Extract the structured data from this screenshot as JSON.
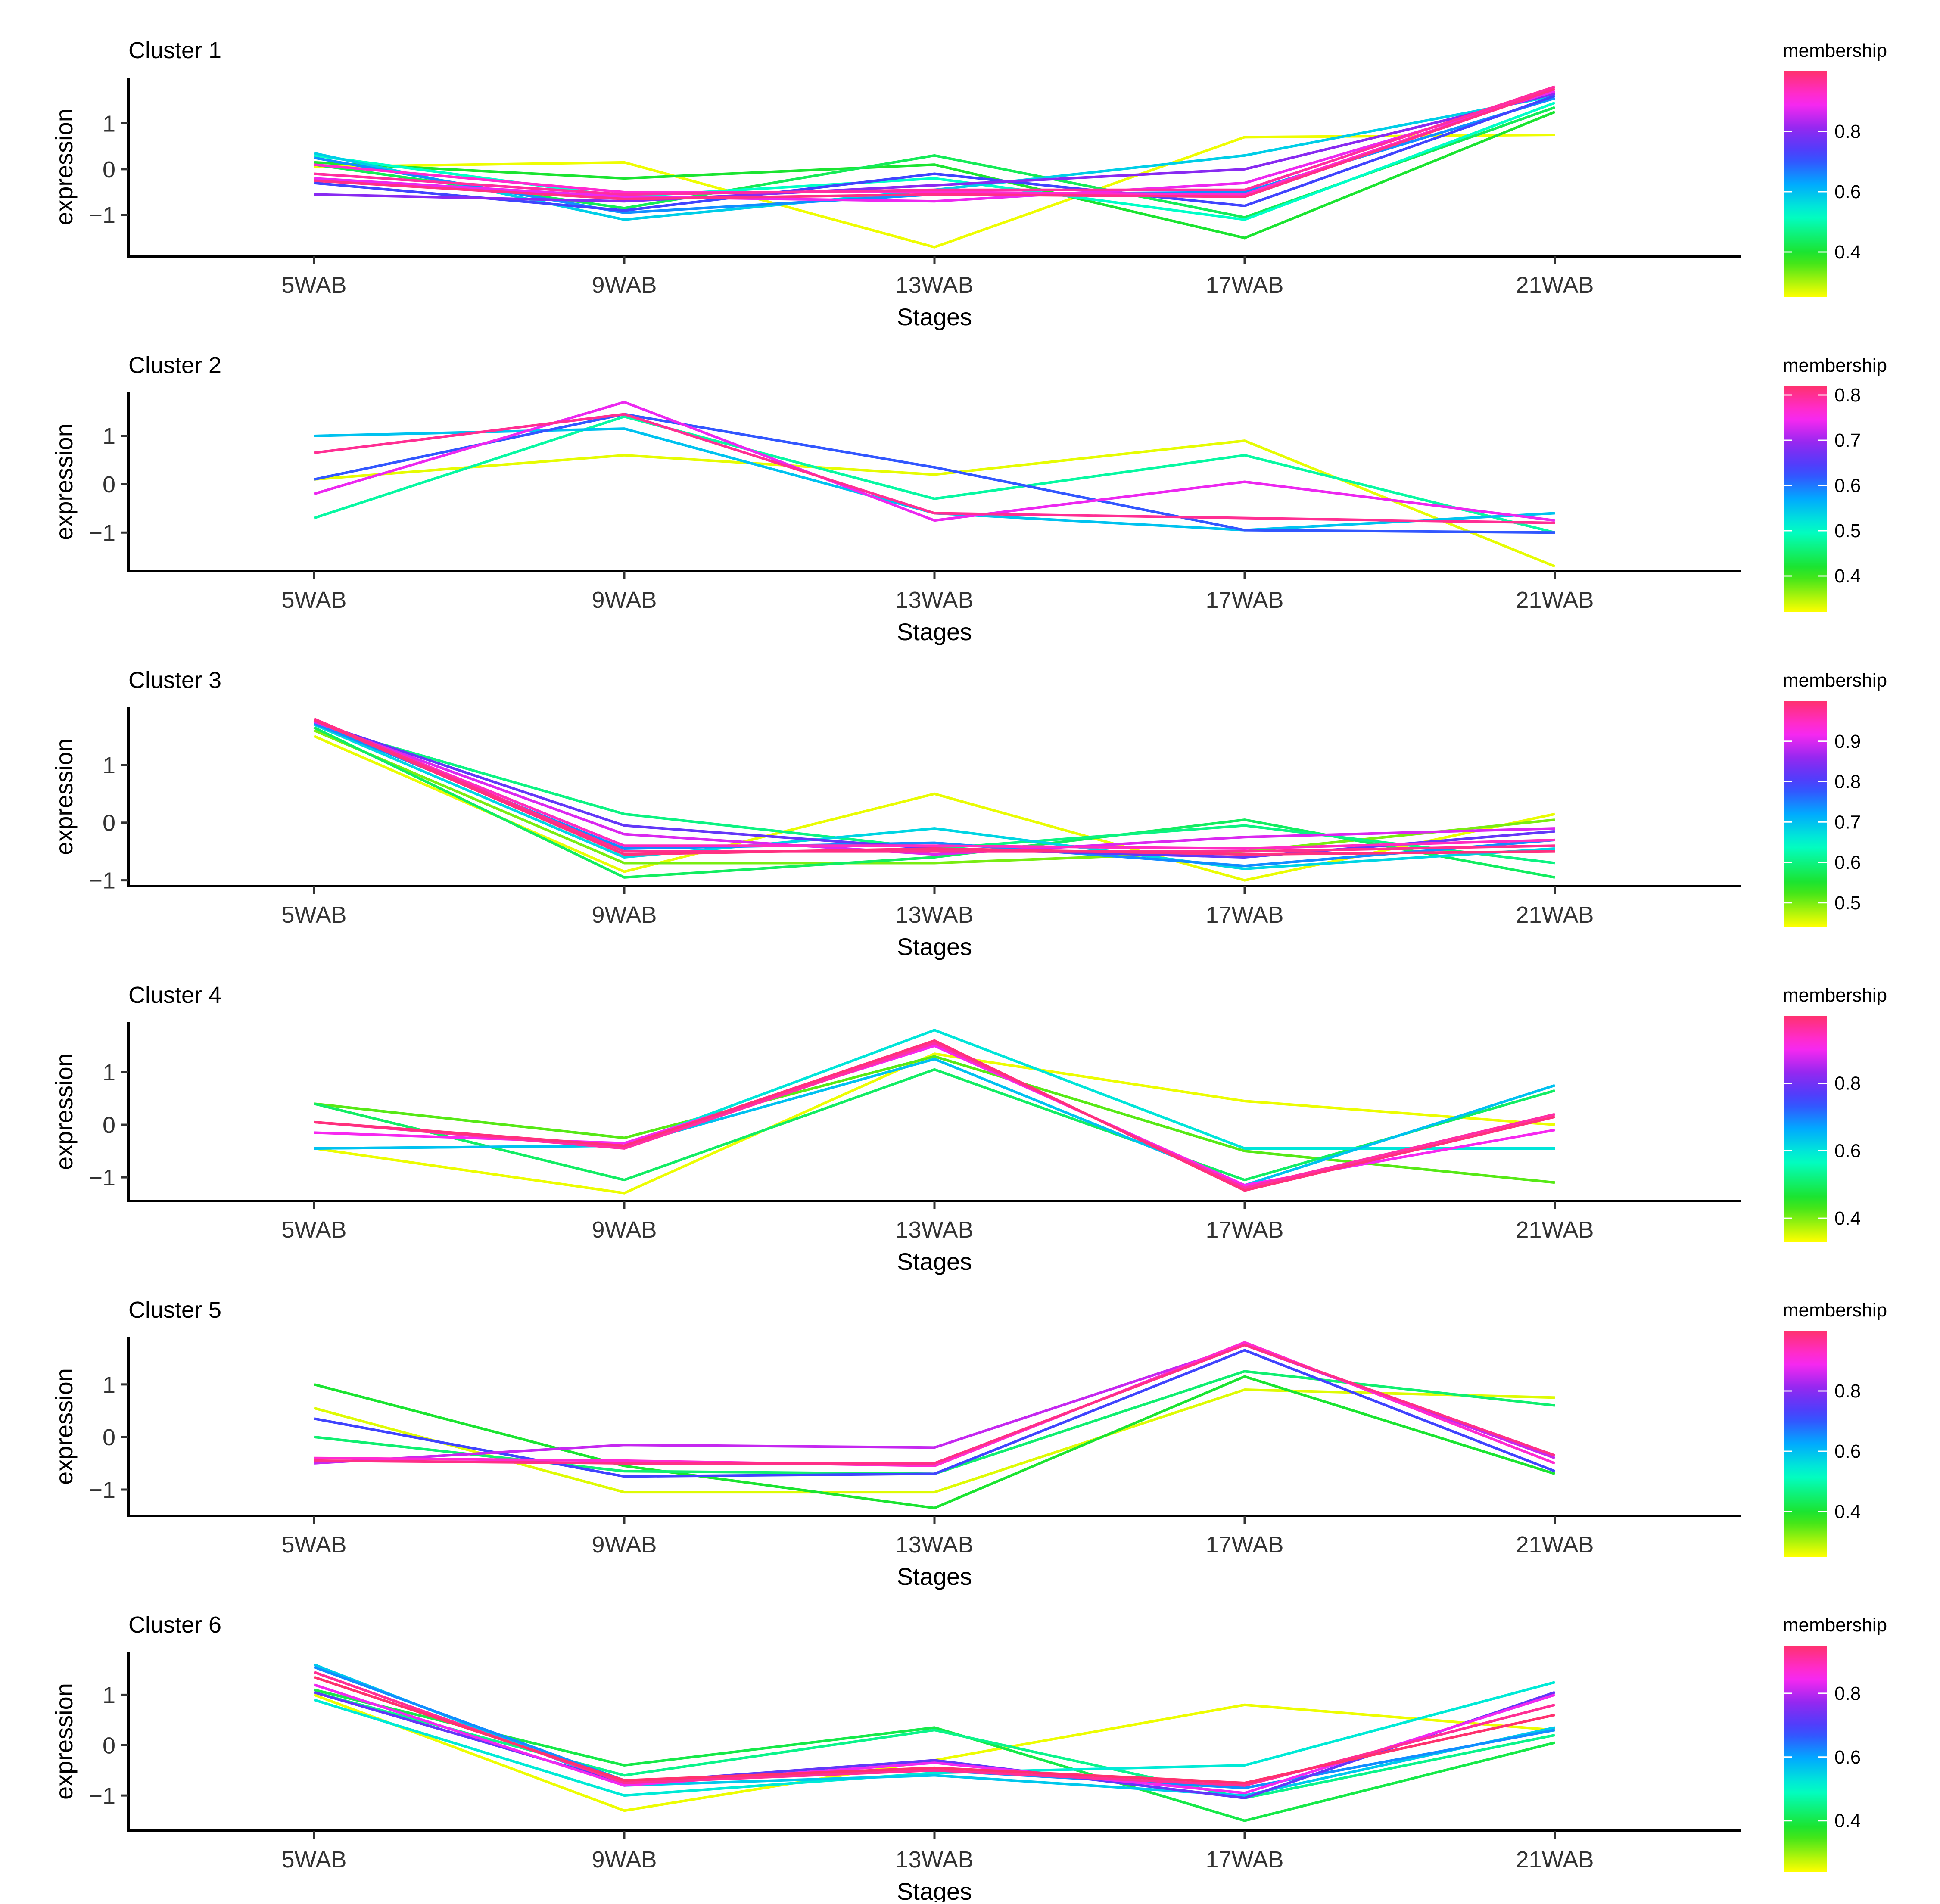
{
  "chart_data": [
    {
      "type": "line",
      "title": "Cluster 1",
      "xlabel": "Stages",
      "ylabel": "expression",
      "categories": [
        "5WAB",
        "9WAB",
        "13WAB",
        "17WAB",
        "21WAB"
      ],
      "yticks": [
        -1,
        0,
        1
      ],
      "ylim": [
        -1.9,
        2.0
      ],
      "legend": {
        "title": "membership",
        "ticks": [
          0.4,
          0.6,
          0.8
        ],
        "range": [
          0.25,
          1.0
        ]
      },
      "series": [
        {
          "membership": 0.26,
          "values": [
            0.05,
            0.15,
            -1.7,
            0.7,
            0.75
          ]
        },
        {
          "membership": 0.4,
          "values": [
            0.15,
            -0.2,
            0.1,
            -1.5,
            1.25
          ]
        },
        {
          "membership": 0.43,
          "values": [
            0.1,
            -0.85,
            0.3,
            -1.05,
            1.35
          ]
        },
        {
          "membership": 0.52,
          "values": [
            0.3,
            -0.6,
            -0.2,
            -1.1,
            1.45
          ]
        },
        {
          "membership": 0.58,
          "values": [
            0.35,
            -1.1,
            -0.45,
            0.3,
            1.6
          ]
        },
        {
          "membership": 0.65,
          "values": [
            0.25,
            -0.95,
            -0.55,
            -0.5,
            1.55
          ]
        },
        {
          "membership": 0.72,
          "values": [
            -0.3,
            -0.9,
            -0.1,
            -0.8,
            1.6
          ]
        },
        {
          "membership": 0.8,
          "values": [
            -0.55,
            -0.7,
            -0.35,
            0.0,
            1.65
          ]
        },
        {
          "membership": 0.88,
          "values": [
            -0.2,
            -0.6,
            -0.7,
            -0.3,
            1.7
          ]
        },
        {
          "membership": 0.92,
          "values": [
            0.1,
            -0.5,
            -0.5,
            -0.55,
            1.75
          ]
        },
        {
          "membership": 0.96,
          "values": [
            -0.1,
            -0.55,
            -0.45,
            -0.45,
            1.8
          ]
        },
        {
          "membership": 0.98,
          "values": [
            -0.25,
            -0.65,
            -0.55,
            -0.6,
            1.75
          ]
        }
      ]
    },
    {
      "type": "line",
      "title": "Cluster 2",
      "xlabel": "Stages",
      "ylabel": "expression",
      "categories": [
        "5WAB",
        "9WAB",
        "13WAB",
        "17WAB",
        "21WAB"
      ],
      "yticks": [
        -1,
        0,
        1
      ],
      "ylim": [
        -1.8,
        1.9
      ],
      "legend": {
        "title": "membership",
        "ticks": [
          0.4,
          0.5,
          0.6,
          0.7,
          0.8
        ],
        "range": [
          0.32,
          0.82
        ]
      },
      "series": [
        {
          "membership": 0.33,
          "values": [
            0.1,
            0.6,
            0.2,
            0.9,
            -1.7
          ]
        },
        {
          "membership": 0.48,
          "values": [
            -0.7,
            1.4,
            -0.3,
            0.6,
            -1.0
          ]
        },
        {
          "membership": 0.55,
          "values": [
            1.0,
            1.15,
            -0.6,
            -0.95,
            -0.6
          ]
        },
        {
          "membership": 0.62,
          "values": [
            0.1,
            1.45,
            0.35,
            -0.95,
            -1.0
          ]
        },
        {
          "membership": 0.74,
          "values": [
            -0.2,
            1.7,
            -0.75,
            0.05,
            -0.75
          ]
        },
        {
          "membership": 0.8,
          "values": [
            0.65,
            1.45,
            -0.6,
            -0.7,
            -0.8
          ]
        }
      ]
    },
    {
      "type": "line",
      "title": "Cluster 3",
      "xlabel": "Stages",
      "ylabel": "expression",
      "categories": [
        "5WAB",
        "9WAB",
        "13WAB",
        "17WAB",
        "21WAB"
      ],
      "yticks": [
        -1,
        0,
        1
      ],
      "ylim": [
        -1.1,
        2.0
      ],
      "legend": {
        "title": "membership",
        "ticks": [
          0.5,
          0.6,
          0.7,
          0.8,
          0.9
        ],
        "range": [
          0.44,
          1.0
        ]
      },
      "series": [
        {
          "membership": 0.45,
          "values": [
            1.5,
            -0.85,
            0.5,
            -1.0,
            0.15
          ]
        },
        {
          "membership": 0.5,
          "values": [
            1.6,
            -0.7,
            -0.7,
            -0.5,
            0.05
          ]
        },
        {
          "membership": 0.58,
          "values": [
            1.65,
            -0.95,
            -0.6,
            0.05,
            -0.95
          ]
        },
        {
          "membership": 0.6,
          "values": [
            1.7,
            0.15,
            -0.45,
            -0.05,
            -0.7
          ]
        },
        {
          "membership": 0.68,
          "values": [
            1.7,
            -0.6,
            -0.1,
            -0.8,
            -0.45
          ]
        },
        {
          "membership": 0.74,
          "values": [
            1.72,
            -0.45,
            -0.35,
            -0.75,
            -0.3
          ]
        },
        {
          "membership": 0.82,
          "values": [
            1.75,
            -0.05,
            -0.45,
            -0.6,
            -0.15
          ]
        },
        {
          "membership": 0.9,
          "values": [
            1.75,
            -0.2,
            -0.55,
            -0.25,
            -0.1
          ]
        },
        {
          "membership": 0.95,
          "values": [
            1.78,
            -0.4,
            -0.4,
            -0.45,
            -0.3
          ]
        },
        {
          "membership": 0.98,
          "values": [
            1.8,
            -0.5,
            -0.5,
            -0.5,
            -0.4
          ]
        },
        {
          "membership": 0.99,
          "values": [
            1.78,
            -0.55,
            -0.45,
            -0.55,
            -0.5
          ]
        }
      ]
    },
    {
      "type": "line",
      "title": "Cluster 4",
      "xlabel": "Stages",
      "ylabel": "expression",
      "categories": [
        "5WAB",
        "9WAB",
        "13WAB",
        "17WAB",
        "21WAB"
      ],
      "yticks": [
        -1,
        0,
        1
      ],
      "ylim": [
        -1.45,
        1.95
      ],
      "legend": {
        "title": "membership",
        "ticks": [
          0.4,
          0.6,
          0.8
        ],
        "range": [
          0.33,
          1.0
        ]
      },
      "series": [
        {
          "membership": 0.34,
          "values": [
            -0.45,
            -1.3,
            1.35,
            0.45,
            0.0
          ]
        },
        {
          "membership": 0.42,
          "values": [
            0.4,
            -0.25,
            1.3,
            -0.5,
            -1.1
          ]
        },
        {
          "membership": 0.5,
          "values": [
            0.4,
            -1.05,
            1.05,
            -1.05,
            0.65
          ]
        },
        {
          "membership": 0.6,
          "values": [
            -0.45,
            -0.4,
            1.8,
            -0.45,
            -0.45
          ]
        },
        {
          "membership": 0.64,
          "values": [
            -0.45,
            -0.4,
            1.25,
            -1.15,
            0.75
          ]
        },
        {
          "membership": 0.9,
          "values": [
            -0.15,
            -0.35,
            1.5,
            -1.15,
            -0.1
          ]
        },
        {
          "membership": 0.96,
          "values": [
            0.05,
            -0.45,
            1.55,
            -1.2,
            0.2
          ]
        },
        {
          "membership": 0.99,
          "values": [
            0.05,
            -0.4,
            1.6,
            -1.25,
            0.15
          ]
        }
      ]
    },
    {
      "type": "line",
      "title": "Cluster 5",
      "xlabel": "Stages",
      "ylabel": "expression",
      "categories": [
        "5WAB",
        "9WAB",
        "13WAB",
        "17WAB",
        "21WAB"
      ],
      "yticks": [
        -1,
        0,
        1
      ],
      "ylim": [
        -1.5,
        1.9
      ],
      "legend": {
        "title": "membership",
        "ticks": [
          0.4,
          0.6,
          0.8
        ],
        "range": [
          0.25,
          1.0
        ]
      },
      "series": [
        {
          "membership": 0.27,
          "values": [
            0.55,
            -1.05,
            -1.05,
            0.9,
            0.75
          ]
        },
        {
          "membership": 0.4,
          "values": [
            1.0,
            -0.55,
            -1.35,
            1.15,
            -0.7
          ]
        },
        {
          "membership": 0.45,
          "values": [
            0.0,
            -0.65,
            -0.7,
            1.25,
            0.6
          ]
        },
        {
          "membership": 0.72,
          "values": [
            0.35,
            -0.75,
            -0.7,
            1.65,
            -0.65
          ]
        },
        {
          "membership": 0.85,
          "values": [
            -0.5,
            -0.15,
            -0.2,
            1.75,
            -0.4
          ]
        },
        {
          "membership": 0.92,
          "values": [
            -0.4,
            -0.45,
            -0.55,
            1.8,
            -0.5
          ]
        },
        {
          "membership": 0.98,
          "values": [
            -0.45,
            -0.5,
            -0.5,
            1.75,
            -0.35
          ]
        }
      ]
    },
    {
      "type": "line",
      "title": "Cluster 6",
      "xlabel": "Stages",
      "ylabel": "expression",
      "categories": [
        "5WAB",
        "9WAB",
        "13WAB",
        "17WAB",
        "21WAB"
      ],
      "yticks": [
        -1,
        0,
        1
      ],
      "ylim": [
        -1.7,
        1.85
      ],
      "legend": {
        "title": "membership",
        "ticks": [
          0.4,
          0.6,
          0.8
        ],
        "range": [
          0.24,
          0.95
        ]
      },
      "series": [
        {
          "membership": 0.25,
          "values": [
            1.0,
            -1.3,
            -0.3,
            0.8,
            0.3
          ]
        },
        {
          "membership": 0.4,
          "values": [
            1.1,
            -0.4,
            0.35,
            -1.5,
            0.05
          ]
        },
        {
          "membership": 0.45,
          "values": [
            1.05,
            -0.6,
            0.3,
            -1.05,
            0.2
          ]
        },
        {
          "membership": 0.52,
          "values": [
            0.9,
            -1.0,
            -0.55,
            -0.4,
            1.25
          ]
        },
        {
          "membership": 0.56,
          "values": [
            1.6,
            -0.8,
            -0.6,
            -1.0,
            0.35
          ]
        },
        {
          "membership": 0.62,
          "values": [
            1.55,
            -0.7,
            -0.5,
            -0.85,
            0.3
          ]
        },
        {
          "membership": 0.72,
          "values": [
            1.05,
            -0.75,
            -0.3,
            -1.05,
            1.05
          ]
        },
        {
          "membership": 0.84,
          "values": [
            1.2,
            -0.8,
            -0.35,
            -0.95,
            1.0
          ]
        },
        {
          "membership": 0.92,
          "values": [
            1.45,
            -0.75,
            -0.5,
            -0.8,
            0.8
          ]
        },
        {
          "membership": 0.95,
          "values": [
            1.35,
            -0.7,
            -0.45,
            -0.75,
            0.6
          ]
        }
      ]
    }
  ]
}
